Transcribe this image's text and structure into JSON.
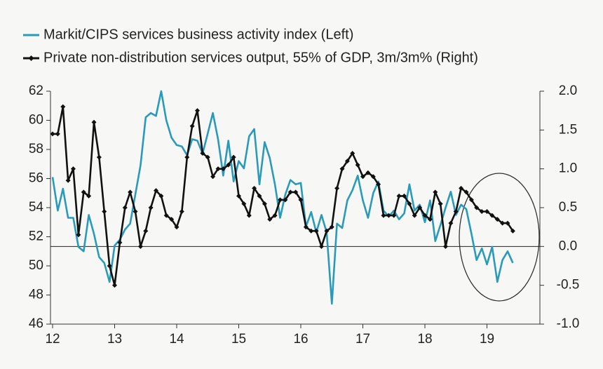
{
  "chart_data": {
    "type": "line",
    "series": [
      {
        "name": "Markit/CIPS services business activity index (Left)",
        "color": "#2a9ab9",
        "axis": "y",
        "values": [
          56.1,
          53.8,
          55.3,
          53.3,
          53.3,
          51.3,
          51.0,
          53.5,
          52.2,
          50.6,
          50.2,
          48.9,
          51.4,
          51.8,
          52.5,
          52.9,
          54.9,
          56.9,
          60.2,
          60.5,
          60.3,
          62.0,
          60.0,
          58.8,
          58.3,
          58.2,
          57.6,
          58.7,
          58.6,
          57.7,
          59.1,
          60.5,
          58.7,
          56.2,
          58.6,
          55.8,
          57.2,
          56.7,
          58.9,
          59.4,
          55.6,
          58.5,
          57.4,
          55.6,
          53.3,
          54.9,
          55.9,
          55.6,
          55.7,
          52.7,
          53.7,
          52.3,
          53.5,
          52.3,
          47.4,
          52.9,
          52.6,
          54.5,
          55.2,
          56.2,
          54.5,
          53.3,
          55.0,
          55.8,
          53.8,
          53.4,
          53.8,
          53.2,
          53.6,
          55.6,
          53.8,
          54.2,
          53.0,
          54.5,
          51.7,
          52.8,
          54.0,
          55.1,
          53.5,
          54.2,
          53.9,
          52.2,
          50.4,
          51.2,
          50.1,
          51.3,
          48.9,
          50.4,
          51.0,
          50.2
        ]
      },
      {
        "name": "Private non-distribution services output, 55% of GDP, 3m/3m% (Right)",
        "color": "#111111",
        "axis": "y2",
        "values": [
          1.45,
          1.45,
          1.8,
          0.85,
          1.0,
          0.15,
          0.7,
          0.65,
          1.6,
          1.15,
          0.45,
          -0.25,
          -0.5,
          0.05,
          0.5,
          0.7,
          0.45,
          0.0,
          0.2,
          0.5,
          0.72,
          0.65,
          0.4,
          0.35,
          0.25,
          0.45,
          1.15,
          1.55,
          1.75,
          1.2,
          1.15,
          0.9,
          1.0,
          1.0,
          1.05,
          1.15,
          0.65,
          0.55,
          0.4,
          0.75,
          0.65,
          0.55,
          0.35,
          0.4,
          0.6,
          0.6,
          0.7,
          0.7,
          0.6,
          0.25,
          0.2,
          0.2,
          0.0,
          0.2,
          0.25,
          0.75,
          1.0,
          1.1,
          1.2,
          1.05,
          0.9,
          0.95,
          0.9,
          0.8,
          0.4,
          0.4,
          0.4,
          0.65,
          0.65,
          0.55,
          0.4,
          0.5,
          0.4,
          0.35,
          0.7,
          0.55,
          0.0,
          0.3,
          0.45,
          0.75,
          0.7,
          0.6,
          0.5,
          0.45,
          0.45,
          0.4,
          0.35,
          0.3,
          0.3,
          0.2
        ]
      }
    ],
    "x": [
      2012,
      2012.083,
      2012.167,
      2012.25,
      2012.333,
      2012.417,
      2012.5,
      2012.583,
      2012.667,
      2012.75,
      2012.833,
      2012.917,
      2013,
      2013.083,
      2013.167,
      2013.25,
      2013.333,
      2013.417,
      2013.5,
      2013.583,
      2013.667,
      2013.75,
      2013.833,
      2013.917,
      2014,
      2014.083,
      2014.167,
      2014.25,
      2014.333,
      2014.417,
      2014.5,
      2014.583,
      2014.667,
      2014.75,
      2014.833,
      2014.917,
      2015,
      2015.083,
      2015.167,
      2015.25,
      2015.333,
      2015.417,
      2015.5,
      2015.583,
      2015.667,
      2015.75,
      2015.833,
      2015.917,
      2016,
      2016.083,
      2016.167,
      2016.25,
      2016.333,
      2016.417,
      2016.5,
      2016.583,
      2016.667,
      2016.75,
      2016.833,
      2016.917,
      2017,
      2017.083,
      2017.167,
      2017.25,
      2017.333,
      2017.417,
      2017.5,
      2017.583,
      2017.667,
      2017.75,
      2017.833,
      2017.917,
      2018,
      2018.083,
      2018.167,
      2018.25,
      2018.333,
      2018.417,
      2018.5,
      2018.583,
      2018.667,
      2018.75,
      2018.833,
      2018.917,
      2019,
      2019.083,
      2019.167,
      2019.25,
      2019.333,
      2019.417
    ],
    "xlim": [
      2011.966,
      2019.853
    ],
    "xticks": [
      {
        "value": 2012,
        "label": "12"
      },
      {
        "value": 2013,
        "label": "13"
      },
      {
        "value": 2014,
        "label": "14"
      },
      {
        "value": 2015,
        "label": "15"
      },
      {
        "value": 2016,
        "label": "16"
      },
      {
        "value": 2017,
        "label": "17"
      },
      {
        "value": 2018,
        "label": "18"
      },
      {
        "value": 2019,
        "label": "19"
      }
    ],
    "ylim": [
      46,
      62
    ],
    "yticks": [
      46,
      48,
      50,
      52,
      54,
      56,
      58,
      60,
      62
    ],
    "y2lim": [
      -1,
      2
    ],
    "y2ticks": [
      {
        "value": -1,
        "label": "-1.0"
      },
      -0.5,
      {
        "value": 0,
        "label": "0.0"
      },
      0.5,
      {
        "value": 1,
        "label": "1.0"
      },
      1.5,
      {
        "value": 2,
        "label": "2.0"
      }
    ]
  }
}
